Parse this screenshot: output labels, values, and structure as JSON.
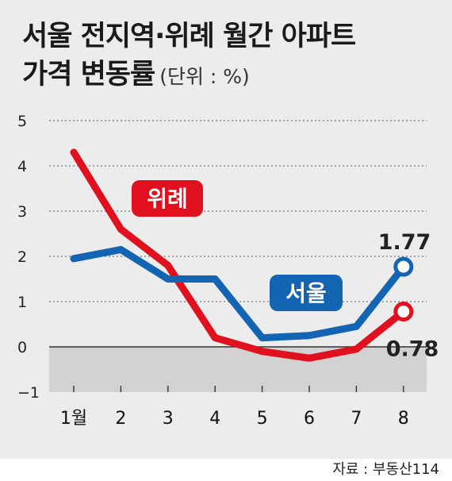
{
  "title_line1": "서울 전지역·위례 월간 아파트",
  "title_line2": "가격 변동률",
  "title_unit": "(단위 : %)",
  "source": "자료 : 부동산114",
  "colors": {
    "seoul": "#1464b4",
    "wirye": "#e0101e",
    "grid": "#777777",
    "negative_band": "#d2d2d2"
  },
  "chart_data": {
    "type": "line",
    "categories": [
      "1월",
      "2",
      "3",
      "4",
      "5",
      "6",
      "7",
      "8"
    ],
    "y_ticks": [
      "5",
      "4",
      "3",
      "2",
      "1",
      "0",
      "−1"
    ],
    "ylim": [
      -1,
      5
    ],
    "grid": true,
    "series": [
      {
        "name": "위례",
        "color": "#e0101e",
        "values": [
          4.3,
          2.6,
          1.8,
          0.2,
          -0.1,
          -0.25,
          -0.05,
          0.78
        ]
      },
      {
        "name": "서울",
        "color": "#1464b4",
        "values": [
          1.95,
          2.15,
          1.5,
          1.5,
          0.2,
          0.25,
          0.45,
          1.77
        ]
      }
    ],
    "annotations": {
      "seoul_last": "1.77",
      "wirye_last": "0.78"
    }
  }
}
